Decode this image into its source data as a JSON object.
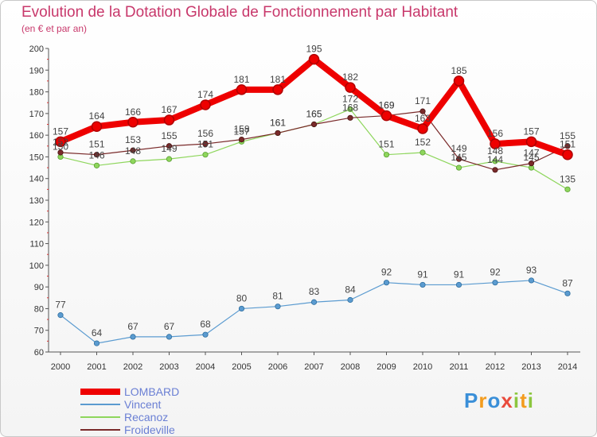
{
  "chart_data": {
    "type": "line",
    "title": "Evolution de la Dotation Globale de Fonctionnement par Habitant",
    "subtitle": "(en € et par an)",
    "xlabel": "",
    "ylabel": "",
    "categories": [
      "2000",
      "2001",
      "2002",
      "2003",
      "2004",
      "2005",
      "2006",
      "2007",
      "2008",
      "2009",
      "2010",
      "2011",
      "2012",
      "2013",
      "2014"
    ],
    "ylim": [
      60,
      200
    ],
    "yticks": [
      60,
      70,
      80,
      90,
      100,
      110,
      120,
      130,
      140,
      150,
      160,
      170,
      180,
      190,
      200
    ],
    "grid": false,
    "legend_position": "bottom-left",
    "series": [
      {
        "name": "LOMBARD",
        "color": "#ee0000",
        "values": [
          157,
          164,
          166,
          167,
          174,
          181,
          181,
          195,
          182,
          169,
          163,
          185,
          156,
          157,
          151
        ]
      },
      {
        "name": "Vincent",
        "color": "#5b9bd0",
        "values": [
          77,
          64,
          67,
          67,
          68,
          80,
          81,
          83,
          84,
          92,
          91,
          91,
          92,
          93,
          87
        ]
      },
      {
        "name": "Recanoz",
        "color": "#8ed65c",
        "values": [
          150,
          146,
          148,
          149,
          151,
          157,
          161,
          165,
          172,
          151,
          152,
          145,
          148,
          145,
          135
        ]
      },
      {
        "name": "Froideville",
        "color": "#7a2a2a",
        "values": [
          152,
          151,
          153,
          155,
          156,
          158,
          161,
          165,
          168,
          169,
          171,
          149,
          144,
          147,
          155
        ]
      }
    ]
  },
  "logo": {
    "letters": [
      "P",
      "r",
      "o",
      "x",
      "i",
      "t",
      "i"
    ],
    "colors": [
      "#3a8fd8",
      "#f39c1e",
      "#3a8fd8",
      "#e94b3c",
      "#8cc63f",
      "#f39c1e",
      "#8cc63f"
    ]
  }
}
